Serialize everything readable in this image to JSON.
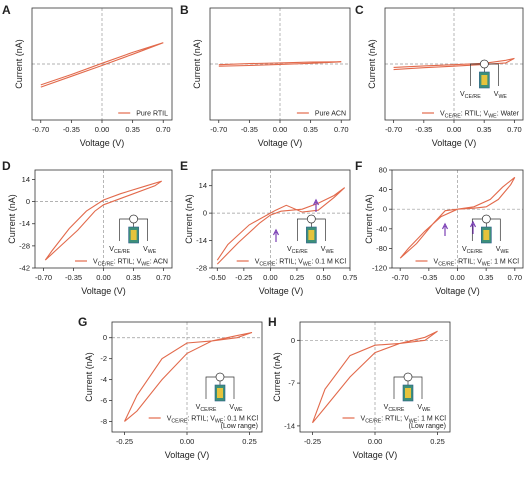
{
  "chart_data": [
    {
      "type": "line",
      "panel": "A",
      "xlabel": "Voltage (V)",
      "ylabel": "Current (nA)",
      "zero_lines": true,
      "xlim": [
        -0.8,
        0.8
      ],
      "ylim": [
        -15,
        15
      ],
      "xticks": [
        {
          "value": -0.7,
          "label": "-0.70"
        },
        -0.35,
        {
          "value": 0,
          "label": "0.00"
        },
        0.35,
        {
          "value": 0.7,
          "label": "0.70"
        }
      ],
      "series": [
        {
          "name": "Pure RTIL",
          "color": "#e26a4c",
          "x": [
            -0.7,
            -0.35,
            0,
            0.35,
            0.7,
            0.35,
            0,
            -0.35,
            -0.7
          ],
          "values": [
            -6.2,
            -3.3,
            -0.4,
            2.6,
            5.7,
            3.1,
            0.2,
            -2.8,
            -5.6
          ]
        }
      ]
    },
    {
      "type": "line",
      "panel": "B",
      "xlabel": "Voltage (V)",
      "ylabel": "Current (nA)",
      "zero_lines": true,
      "xlim": [
        -0.8,
        0.8
      ],
      "ylim": [
        -15,
        15
      ],
      "xticks": [
        {
          "value": -0.7,
          "label": "-0.70"
        },
        -0.35,
        {
          "value": 0,
          "label": "0.00"
        },
        0.35,
        {
          "value": 0.7,
          "label": "0.70"
        }
      ],
      "series": [
        {
          "name": "Pure ACN",
          "color": "#e26a4c",
          "x": [
            -0.7,
            -0.35,
            0,
            0.35,
            0.7,
            0.35,
            0,
            -0.35,
            -0.7
          ],
          "values": [
            -0.6,
            -0.4,
            -0.1,
            0.2,
            0.6,
            0.5,
            0.3,
            0.1,
            -0.2
          ]
        }
      ]
    },
    {
      "type": "line",
      "panel": "C",
      "xlabel": "Voltage (V)",
      "ylabel": "Current (nA)",
      "zero_lines": true,
      "xlim": [
        -0.8,
        0.8
      ],
      "ylim": [
        -15,
        15
      ],
      "xticks": [
        {
          "value": -0.7,
          "label": "-0.70"
        },
        -0.35,
        {
          "value": 0,
          "label": "0.00"
        },
        0.35,
        {
          "value": 0.7,
          "label": "0.70"
        }
      ],
      "inset_labels": [
        "VCE/RE",
        "VWE"
      ],
      "series": [
        {
          "name": "VCE/RE: RTIL; VWE: Water",
          "color": "#e26a4c",
          "x": [
            -0.7,
            -0.35,
            0,
            0.35,
            0.6,
            0.7,
            0.6,
            0.35,
            0,
            -0.35,
            -0.7
          ],
          "values": [
            -1.5,
            -1.0,
            -0.6,
            -0.1,
            0.3,
            1.5,
            1.0,
            0.2,
            -0.2,
            -0.5,
            -0.9
          ]
        }
      ]
    },
    {
      "type": "line",
      "panel": "D",
      "xlabel": "Voltage (V)",
      "ylabel": "Current (nA)",
      "zero_lines": true,
      "xlim": [
        -0.8,
        0.8
      ],
      "ylim": [
        -42,
        20
      ],
      "xticks": [
        {
          "value": -0.7,
          "label": "-0.70"
        },
        -0.35,
        {
          "value": 0,
          "label": "0.00"
        },
        0.35,
        {
          "value": 0.7,
          "label": "0.70"
        }
      ],
      "yticks": [
        14,
        0,
        -14,
        -28,
        -42
      ],
      "inset_labels": [
        "VCE/RE",
        "VWE"
      ],
      "series": [
        {
          "name": "VCE/RE: RTIL; VWE: ACN",
          "color": "#e26a4c",
          "x": [
            -0.68,
            -0.5,
            -0.3,
            -0.1,
            0,
            0.3,
            0.6,
            0.68,
            0.5,
            0.2,
            0,
            -0.2,
            -0.4,
            -0.6,
            -0.68
          ],
          "values": [
            -37,
            -28,
            -18,
            -6,
            -2,
            4,
            10,
            13,
            10,
            5,
            1,
            -6,
            -17,
            -31,
            -37
          ]
        }
      ]
    },
    {
      "type": "line",
      "panel": "E",
      "xlabel": "Voltage (V)",
      "ylabel": "Current (nA)",
      "zero_lines": true,
      "xlim": [
        -0.55,
        0.75
      ],
      "ylim": [
        -28,
        22
      ],
      "xticks": [
        {
          "value": -0.5,
          "label": "-0.50"
        },
        -0.25,
        {
          "value": 0,
          "label": "0.00"
        },
        0.25,
        {
          "value": 0.5,
          "label": "0.50"
        },
        0.75
      ],
      "yticks": [
        14,
        0,
        -14,
        -28
      ],
      "inset_labels": [
        "VCE/RE",
        "VWE"
      ],
      "series": [
        {
          "name": "VCE/RE: RTIL; VWE: 0.1 M KCl",
          "color": "#e26a4c",
          "x": [
            -0.5,
            -0.3,
            -0.1,
            0,
            0.1,
            0.2,
            0.3,
            0.45,
            0.6,
            0.7,
            0.6,
            0.45,
            0.3,
            0.15,
            0.05,
            0,
            -0.2,
            -0.4,
            -0.5
          ],
          "values": [
            -26,
            -15,
            -5,
            -1,
            1,
            1.5,
            2,
            5,
            9,
            13,
            8,
            1.5,
            0.5,
            4,
            1.5,
            0,
            -6,
            -16,
            -24
          ]
        }
      ]
    },
    {
      "type": "line",
      "panel": "F",
      "xlabel": "Voltage (V)",
      "ylabel": "Current (nA)",
      "zero_lines": true,
      "xlim": [
        -0.8,
        0.8
      ],
      "ylim": [
        -120,
        80
      ],
      "xticks": [
        {
          "value": -0.7,
          "label": "-0.70"
        },
        -0.35,
        {
          "value": 0,
          "label": "0.00"
        },
        0.35,
        {
          "value": 0.7,
          "label": "0.70"
        }
      ],
      "yticks": [
        80,
        40,
        0,
        -40,
        -80,
        -120
      ],
      "inset_labels": [
        "VCE/RE",
        "VWE"
      ],
      "series": [
        {
          "name": "VCE/RE: RTIL; VWE: 1 M KCl",
          "color": "#e26a4c",
          "x": [
            -0.7,
            -0.5,
            -0.3,
            -0.15,
            0,
            0.2,
            0.35,
            0.5,
            0.65,
            0.7,
            0.55,
            0.4,
            0.2,
            0,
            -0.2,
            -0.4,
            -0.6,
            -0.7
          ],
          "values": [
            -100,
            -70,
            -30,
            -3,
            0,
            2,
            5,
            20,
            50,
            65,
            45,
            20,
            5,
            0,
            -15,
            -45,
            -80,
            -100
          ]
        }
      ]
    },
    {
      "type": "line",
      "panel": "G",
      "xlabel": "Voltage (V)",
      "ylabel": "Current (nA)",
      "zero_lines": true,
      "xlim": [
        -0.3,
        0.3
      ],
      "ylim": [
        -9,
        1.5
      ],
      "xticks": [
        -0.25,
        {
          "value": 0,
          "label": "0.00"
        },
        0.25
      ],
      "yticks": [
        0,
        -2,
        -4,
        -6,
        -8
      ],
      "inset_labels": [
        "VCE/RE",
        "VWE"
      ],
      "series": [
        {
          "name": "VCE/RE: RTIL; VWE: 0.1 M KCl",
          "note": "(Low range)",
          "color": "#e26a4c",
          "x": [
            -0.25,
            -0.2,
            -0.1,
            0,
            0.1,
            0.2,
            0.26,
            0.2,
            0.1,
            0,
            -0.1,
            -0.2,
            -0.25
          ],
          "values": [
            -8,
            -7,
            -4,
            -1.5,
            -0.3,
            0.2,
            0.5,
            0,
            -0.3,
            -0.5,
            -2,
            -5.5,
            -8
          ]
        }
      ]
    },
    {
      "type": "line",
      "panel": "H",
      "xlabel": "Voltage (V)",
      "ylabel": "Current (nA)",
      "zero_lines": true,
      "xlim": [
        -0.3,
        0.3
      ],
      "ylim": [
        -15,
        3
      ],
      "xticks": [
        -0.25,
        {
          "value": 0,
          "label": "0.00"
        },
        0.25
      ],
      "yticks": [
        0,
        -7,
        -14
      ],
      "inset_labels": [
        "VCE/RE",
        "VWE"
      ],
      "series": [
        {
          "name": "VCE/RE: RTIL; VWE: 1 M KCl",
          "note": "(Low range)",
          "color": "#e26a4c",
          "x": [
            -0.25,
            -0.2,
            -0.1,
            0,
            0.1,
            0.2,
            0.25,
            0.2,
            0.1,
            0,
            -0.1,
            -0.2,
            -0.25
          ],
          "values": [
            -13.5,
            -11,
            -6,
            -2,
            -0.5,
            0.5,
            1.5,
            0,
            -0.5,
            -0.8,
            -2.5,
            -8,
            -13.5
          ]
        }
      ]
    }
  ]
}
